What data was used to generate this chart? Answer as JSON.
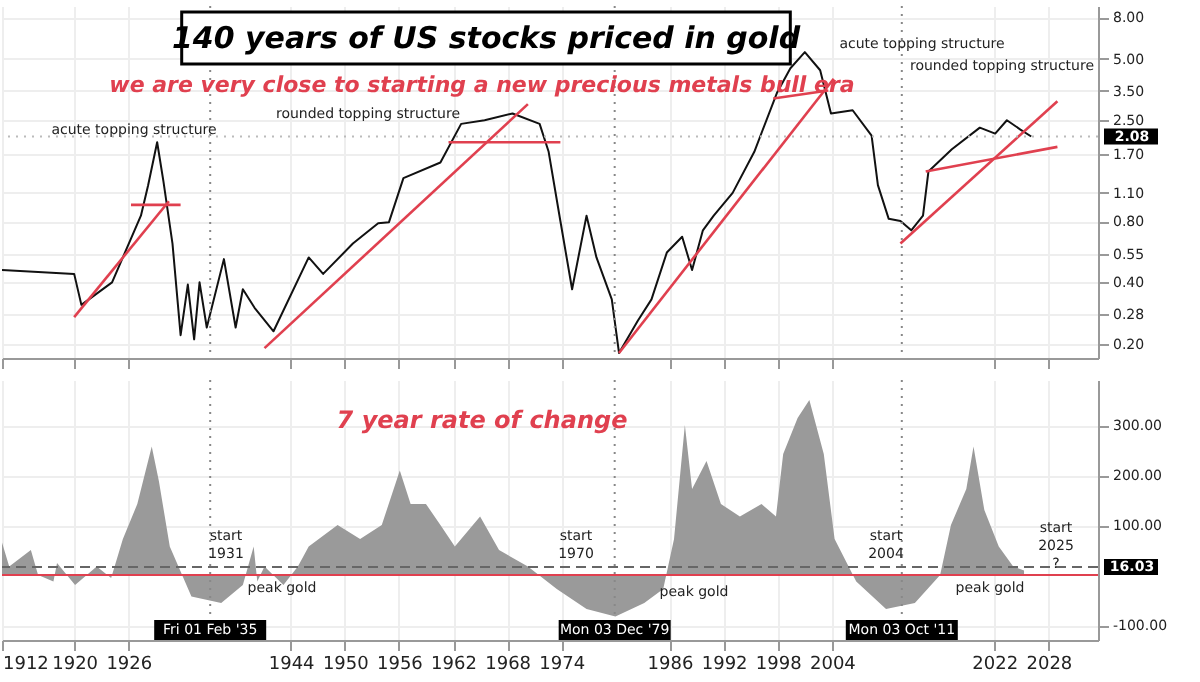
{
  "chart_data": [
    {
      "type": "line",
      "title": "140 years of US stocks priced in gold",
      "subtitle": "we are very close to starting a new precious metals bull era",
      "log": true,
      "grid": true,
      "tick_labels": "y",
      "xlim": [
        1912,
        2033.5
      ],
      "xticks": [
        1912,
        1920,
        1926,
        1944,
        1950,
        1956,
        1962,
        1968,
        1974,
        1986,
        1992,
        1998,
        2004,
        2022,
        2028
      ],
      "ylim": [
        0.17,
        9.1
      ],
      "yticks": [
        {
          "value": 0.2,
          "label": "0.20"
        },
        {
          "value": 0.28,
          "label": "0.28"
        },
        {
          "value": 0.4,
          "label": "0.40"
        },
        {
          "value": 0.55,
          "label": "0.55"
        },
        {
          "value": 0.8,
          "label": "0.80"
        },
        {
          "value": 1.1,
          "label": "1.10"
        },
        {
          "value": 1.7,
          "label": "1.70"
        },
        {
          "value": 2.5,
          "label": "2.50"
        },
        {
          "value": 3.5,
          "label": "3.50"
        },
        {
          "value": 5,
          "label": "5.00"
        },
        {
          "value": 8,
          "label": "8.00"
        }
      ],
      "series": [
        {
          "color": "#111111",
          "x": [
            1912,
            1920,
            1920.8,
            1924.2,
            1927.4,
            1928.2,
            1929.2,
            1929.9,
            1930.9,
            1931.8,
            1932.6,
            1933.3,
            1933.9,
            1934.7,
            1936.6,
            1937.9,
            1938.7,
            1940.0,
            1942.1,
            1946.0,
            1947.6,
            1950.9,
            1953.7,
            1954.9,
            1956.5,
            1960.6,
            1962.9,
            1965.5,
            1968.6,
            1971.6,
            1972.6,
            1973.9,
            1975.2,
            1976.8,
            1977.9,
            1979.6,
            1980.4,
            1982.5,
            1984.0,
            1985.7,
            1987.4,
            1988.5,
            1989.7,
            1990.9,
            1993.0,
            1995.4,
            1997.9,
            1999.4,
            2001.0,
            2002.7,
            2003.9,
            2006.3,
            2008.4,
            2009.1,
            2010.3,
            2011.6,
            2012.8,
            2014.1,
            2014.7,
            2017.3,
            2020.4,
            2022.1,
            2023.4,
            2024.9,
            2026.1
          ],
          "values": [
            0.46,
            0.44,
            0.31,
            0.4,
            0.85,
            1.2,
            1.95,
            1.25,
            0.62,
            0.22,
            0.39,
            0.21,
            0.4,
            0.24,
            0.52,
            0.24,
            0.37,
            0.3,
            0.23,
            0.53,
            0.44,
            0.62,
            0.78,
            0.79,
            1.3,
            1.55,
            2.4,
            2.5,
            2.7,
            2.4,
            1.75,
            0.8,
            0.37,
            0.85,
            0.53,
            0.33,
            0.18,
            0.26,
            0.33,
            0.56,
            0.67,
            0.46,
            0.72,
            0.85,
            1.1,
            1.75,
            3.4,
            4.5,
            5.4,
            4.4,
            2.7,
            2.8,
            2.1,
            1.2,
            0.82,
            0.8,
            0.72,
            0.85,
            1.4,
            1.8,
            2.3,
            2.15,
            2.5,
            2.25,
            2.08
          ]
        },
        {
          "type": "line",
          "color": "#e0404f",
          "x": [
            1920,
            1930.5
          ],
          "values": [
            0.27,
            1.0
          ]
        },
        {
          "type": "line",
          "color": "#e0404f",
          "x": [
            1926.3,
            1931.8
          ],
          "values": [
            0.96,
            0.96
          ]
        },
        {
          "type": "line",
          "color": "#e0404f",
          "x": [
            1941.1,
            1970.3
          ],
          "values": [
            0.19,
            3.0
          ]
        },
        {
          "type": "line",
          "color": "#e0404f",
          "x": [
            1961.5,
            1973.9
          ],
          "values": [
            1.95,
            1.95
          ]
        },
        {
          "type": "line",
          "color": "#e0404f",
          "x": [
            1980.4,
            2004.2
          ],
          "values": [
            0.18,
            4.0
          ]
        },
        {
          "type": "line",
          "color": "#e0404f",
          "x": [
            1997.5,
            2003.6
          ],
          "values": [
            3.2,
            3.5
          ]
        },
        {
          "type": "line",
          "color": "#e0404f",
          "x": [
            2011.6,
            2029
          ],
          "values": [
            0.62,
            3.1
          ]
        },
        {
          "type": "line",
          "color": "#e0404f",
          "x": [
            2014.4,
            2029
          ],
          "values": [
            1.4,
            1.85
          ]
        }
      ],
      "ref_lines": [
        {
          "axis": "x",
          "value": 1935.08,
          "color": "#888888",
          "line_style": "dotted"
        },
        {
          "axis": "x",
          "value": 1979.92,
          "color": "#888888",
          "line_style": "dotted"
        },
        {
          "axis": "x",
          "value": 2011.75,
          "color": "#888888",
          "line_style": "dotted"
        },
        {
          "axis": "y",
          "value": 2.08,
          "label": "2.08",
          "color": "#bbbbbb",
          "line_style": "dotted"
        }
      ],
      "annotations": [
        "acute topping structure",
        "rounded topping structure",
        "acute topping structure",
        "rounded topping structure"
      ]
    },
    {
      "type": "area",
      "grid": true,
      "xlim": [
        1912,
        2033.5
      ],
      "xticks": [
        1912,
        1920,
        1926,
        1944,
        1950,
        1956,
        1962,
        1968,
        1974,
        1986,
        1992,
        1998,
        2004,
        2022,
        2028
      ],
      "ylim": [
        -130,
        390
      ],
      "yticks": [
        {
          "value": -100,
          "label": "-100.00"
        },
        {
          "value": 100,
          "label": "100.00"
        },
        {
          "value": 200,
          "label": "200.00"
        },
        {
          "value": 300,
          "label": "300.00"
        }
      ],
      "series": [
        {
          "color": "#9a9a9a",
          "x": [
            1912.0,
            1912.8,
            1915.2,
            1916.0,
            1917.7,
            1918.1,
            1920.1,
            1922.5,
            1924.1,
            1925.4,
            1927.0,
            1928.6,
            1929.4,
            1930.6,
            1933.0,
            1936.3,
            1938.7,
            1939.9,
            1940.3,
            1941.1,
            1943.2,
            1944.8,
            1946.0,
            1949.2,
            1951.7,
            1954.1,
            1956.1,
            1957.3,
            1959.0,
            1960.6,
            1962.2,
            1965.0,
            1967.1,
            1970.3,
            1973.5,
            1976.8,
            1980.0,
            1983.2,
            1985.3,
            1986.5,
            1987.7,
            1988.5,
            1990.1,
            1991.7,
            1993.8,
            1996.2,
            1997.8,
            1998.6,
            2000.2,
            2001.5,
            2003.1,
            2004.3,
            2006.7,
            2010.0,
            2013.2,
            2016.0,
            2017.2,
            2018.9,
            2019.7,
            2020.9,
            2022.5,
            2024.1,
            2025.3
          ],
          "values": [
            65,
            17,
            50,
            0,
            -13,
            24,
            -20,
            17,
            -6,
            72,
            142,
            257,
            187,
            57,
            -43,
            -56,
            -20,
            57,
            -13,
            17,
            -20,
            17,
            57,
            100,
            72,
            100,
            209,
            142,
            142,
            100,
            57,
            117,
            50,
            17,
            -28,
            -68,
            -83,
            -56,
            -28,
            72,
            300,
            172,
            228,
            142,
            117,
            142,
            117,
            242,
            314,
            350,
            242,
            72,
            -13,
            -68,
            -56,
            0,
            100,
            172,
            257,
            130,
            57,
            17,
            9
          ]
        }
      ],
      "ref_lines": [
        {
          "axis": "y",
          "value": 0,
          "color": "#e0404f",
          "line_style": "solid"
        },
        {
          "axis": "y",
          "value": 16.03,
          "label": "16.03",
          "color": "#666666",
          "line_style": "dashed"
        },
        {
          "axis": "x",
          "value": 1935.08,
          "label": "Fri 01 Feb '35",
          "color": "#888888",
          "line_style": "dotted"
        },
        {
          "axis": "x",
          "value": 1979.92,
          "label": "Mon 03 Dec '79",
          "color": "#888888",
          "line_style": "dotted"
        },
        {
          "axis": "x",
          "value": 2011.75,
          "label": "Mon 03 Oct '11",
          "color": "#888888",
          "line_style": "dotted"
        }
      ],
      "annotations": [
        "7 year rate of change",
        "start\n1931",
        "start\n1970",
        "start\n2004",
        "start\n2025\n?",
        "peak gold",
        "peak gold",
        "peak gold"
      ]
    }
  ]
}
